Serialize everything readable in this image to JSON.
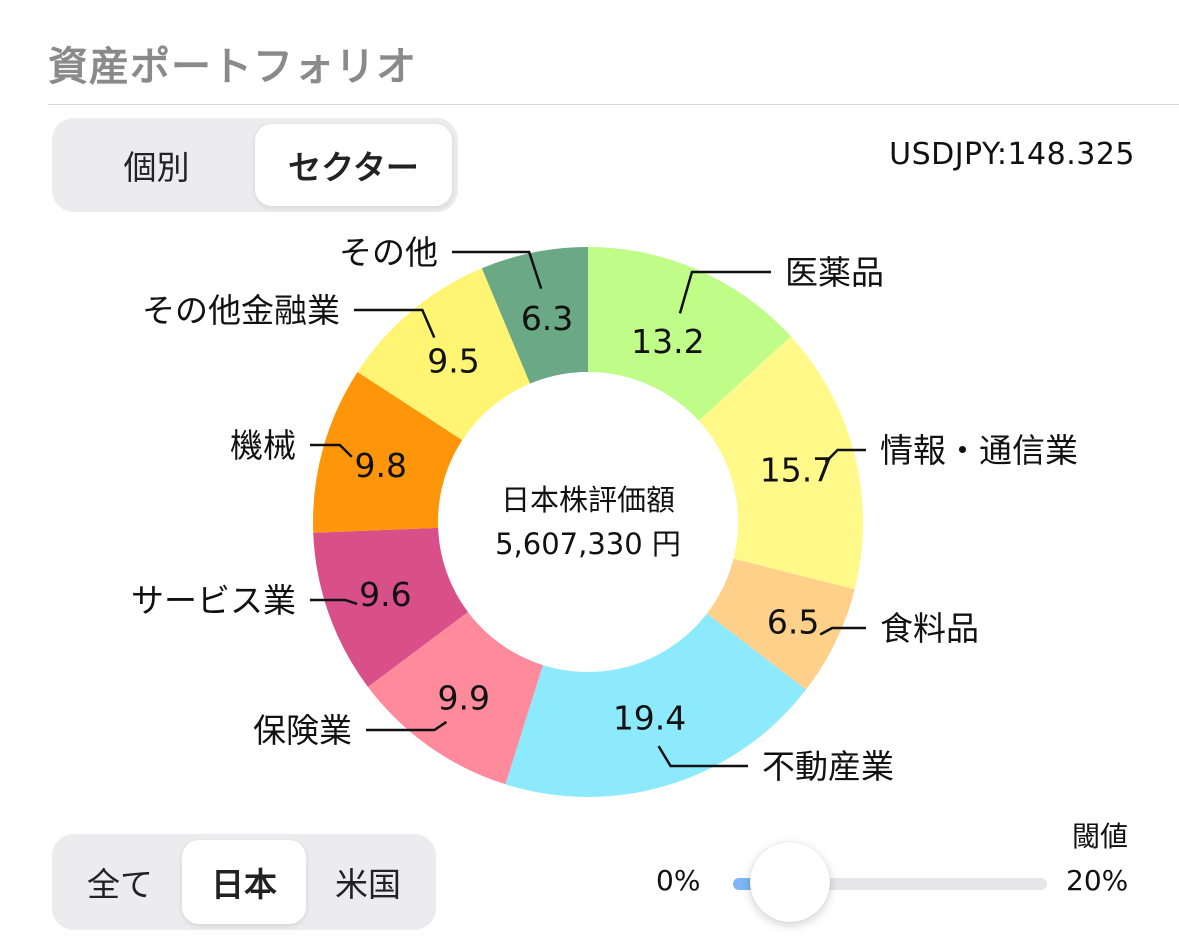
{
  "header": {
    "title": "資産ポートフォリオ"
  },
  "view_toggle": {
    "options": [
      "個別",
      "セクター"
    ],
    "selected": "セクター"
  },
  "fx": {
    "text": "USDJPY:148.325"
  },
  "region_toggle": {
    "options": [
      "全て",
      "日本",
      "米国"
    ],
    "selected": "日本"
  },
  "threshold": {
    "title": "閾値",
    "min_label": "0%",
    "max_label": "20%",
    "value_fraction": 0.3
  },
  "chart_data": {
    "type": "pie",
    "donut": true,
    "center_label": "日本株評価額",
    "center_value": "5,607,330 円",
    "slices": [
      {
        "label": "医薬品",
        "value": 13.2,
        "value_label": "13.2",
        "color": "#c0fd88"
      },
      {
        "label": "情報・通信業",
        "value": 15.7,
        "value_label": "15.7",
        "color": "#fff98a"
      },
      {
        "label": "食料品",
        "value": 6.5,
        "value_label": "6.5",
        "color": "#ffd08a"
      },
      {
        "label": "不動産業",
        "value": 19.4,
        "value_label": "19.4",
        "color": "#8deafd"
      },
      {
        "label": "保険業",
        "value": 9.9,
        "value_label": "9.9",
        "color": "#fe8a9c"
      },
      {
        "label": "サービス業",
        "value": 9.6,
        "value_label": "9.6",
        "color": "#d84f8a"
      },
      {
        "label": "機械",
        "value": 9.8,
        "value_label": "9.8",
        "color": "#ff960a"
      },
      {
        "label": "その他金融業",
        "value": 9.5,
        "value_label": "9.5",
        "color": "#fff573"
      },
      {
        "label": "その他",
        "value": 6.3,
        "value_label": "6.3",
        "color": "#6aa886"
      }
    ]
  }
}
